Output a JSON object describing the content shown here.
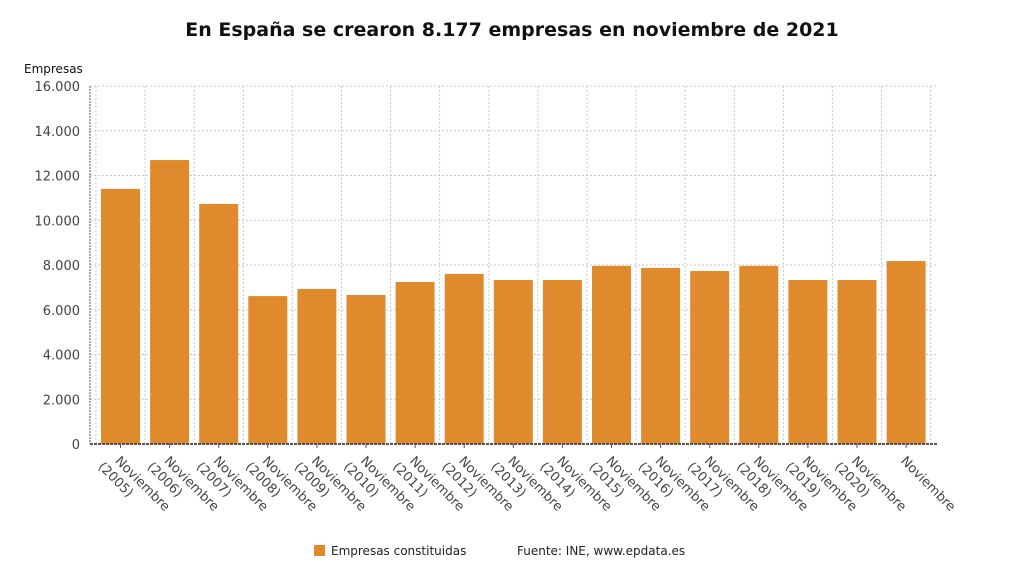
{
  "chart_data": {
    "type": "bar",
    "title": "En España se crearon 8.177 empresas en noviembre de 2021",
    "ylabel": "Empresas",
    "xlabel": "",
    "ylim": [
      0,
      16000
    ],
    "yticks": [
      0,
      2000,
      4000,
      6000,
      8000,
      10000,
      12000,
      14000,
      16000
    ],
    "ytick_labels": [
      "0",
      "2.000",
      "4.000",
      "6.000",
      "8.000",
      "10.000",
      "12.000",
      "14.000",
      "16.000"
    ],
    "grid": true,
    "categories": [
      [
        "Noviembre",
        "(2005)"
      ],
      [
        "Noviembre",
        "(2006)"
      ],
      [
        "Noviembre",
        "(2007)"
      ],
      [
        "Noviembre",
        "(2008)"
      ],
      [
        "Noviembre",
        "(2009)"
      ],
      [
        "Noviembre",
        "(2010)"
      ],
      [
        "Noviembre",
        "(2011)"
      ],
      [
        "Noviembre",
        "(2012)"
      ],
      [
        "Noviembre",
        "(2013)"
      ],
      [
        "Noviembre",
        "(2014)"
      ],
      [
        "Noviembre",
        "(2015)"
      ],
      [
        "Noviembre",
        "(2016)"
      ],
      [
        "Noviembre",
        "(2017)"
      ],
      [
        "Noviembre",
        "(2018)"
      ],
      [
        "Noviembre",
        "(2019)"
      ],
      [
        "Noviembre",
        "(2020)"
      ],
      [
        "Noviembre"
      ]
    ],
    "series": [
      {
        "name": "Empresas constituidas",
        "color": "#e08a2e",
        "values": [
          11400,
          12690,
          10730,
          6610,
          6930,
          6660,
          7240,
          7600,
          7330,
          7330,
          7960,
          7870,
          7730,
          7960,
          7330,
          7330,
          8177
        ]
      }
    ],
    "legend_position": "bottom",
    "source": "Fuente: INE, www.epdata.es"
  }
}
